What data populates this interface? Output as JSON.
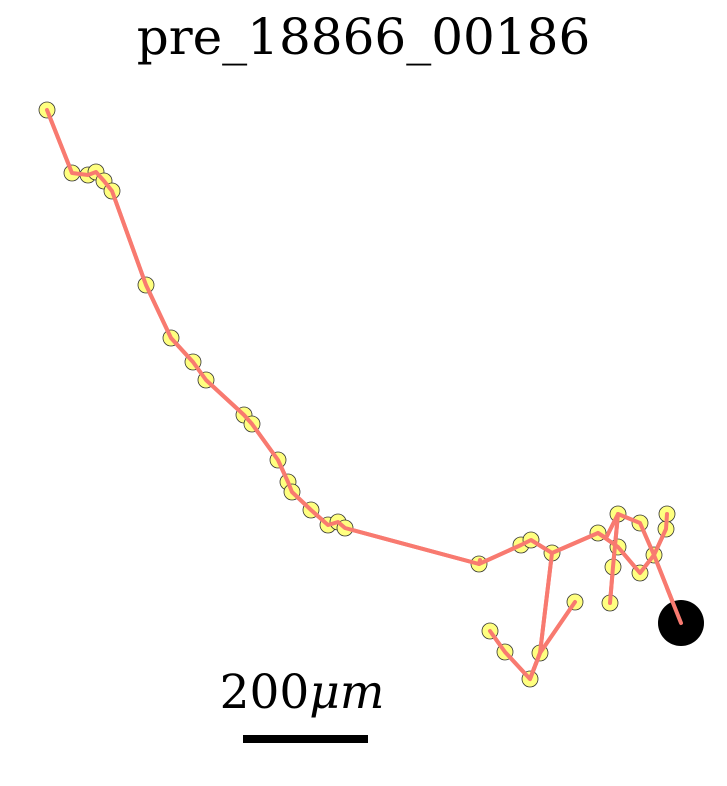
{
  "title": "pre_18866_00186",
  "scalebar": {
    "label_value": "200",
    "label_unit": "μm"
  },
  "colors": {
    "path": "#f87a70",
    "node_fill": "#ffff80",
    "node_stroke": "#333333",
    "soma": "#000000",
    "scalebar": "#000000"
  }
}
